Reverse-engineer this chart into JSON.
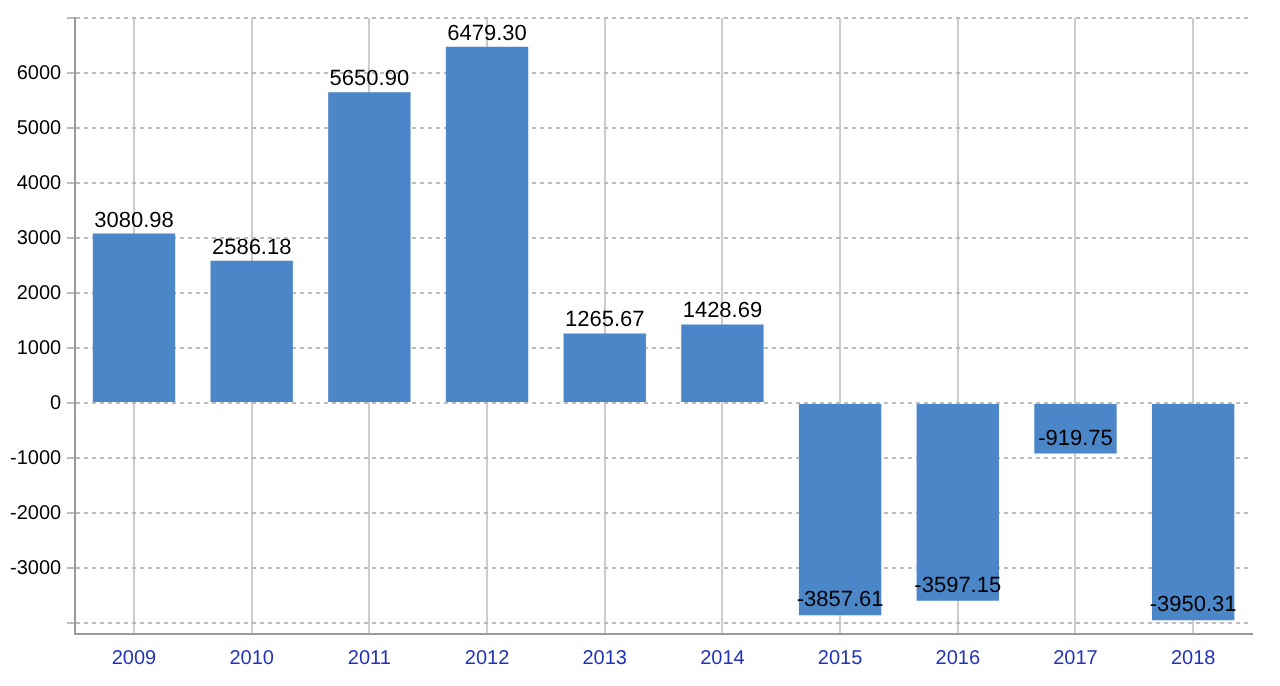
{
  "chart_data": {
    "type": "bar",
    "categories": [
      "2009",
      "2010",
      "2011",
      "2012",
      "2013",
      "2014",
      "2015",
      "2016",
      "2017",
      "2018"
    ],
    "values": [
      3080.98,
      2586.18,
      5650.9,
      6479.3,
      1265.67,
      1428.69,
      -3857.61,
      -3597.15,
      -919.75,
      -3950.31
    ],
    "value_labels": [
      "3080.98",
      "2586.18",
      "5650.90",
      "6479.30",
      "1265.67",
      "1428.69",
      "-3857.61",
      "-3597.15",
      "-919.75",
      "-3950.31"
    ],
    "color": "#4a86c8",
    "ylim": [
      -4200,
      7000
    ],
    "yticks": [
      {
        "value": -4000,
        "label": null
      },
      -3000,
      -2000,
      -1000,
      0,
      1000,
      2000,
      3000,
      4000,
      5000,
      6000,
      {
        "value": 7000,
        "label": null
      }
    ],
    "grid": true
  }
}
